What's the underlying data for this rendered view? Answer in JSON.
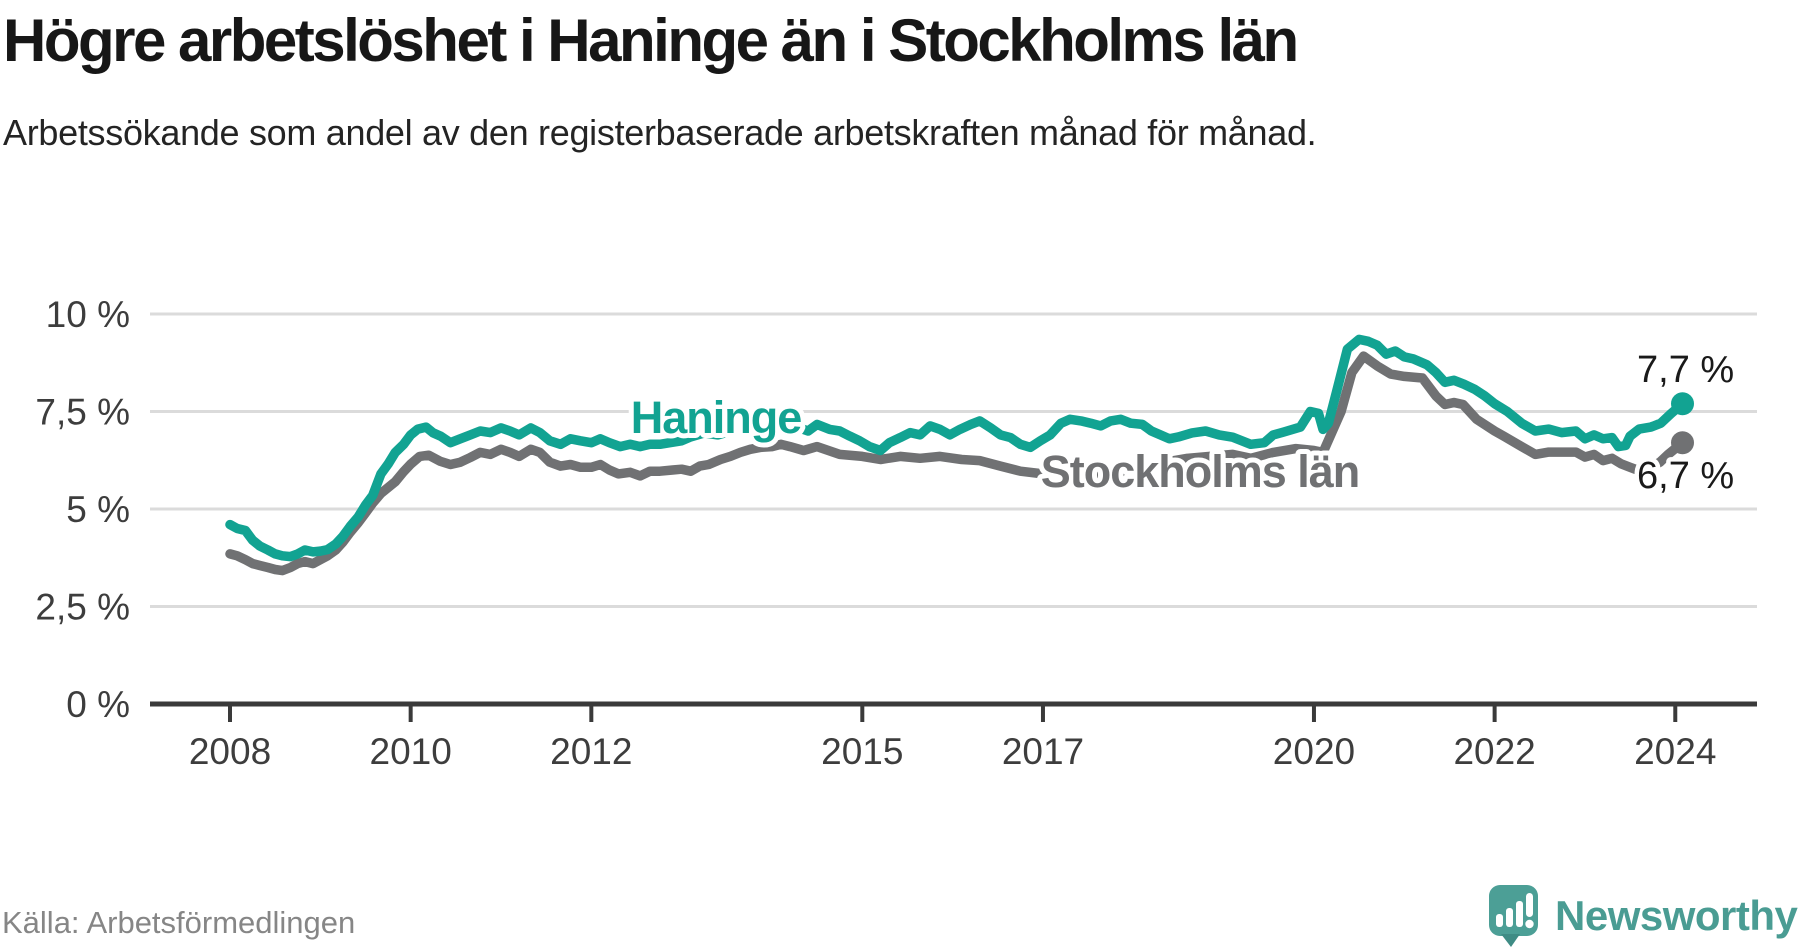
{
  "branding": {
    "name": "Newsworthy",
    "text_color": "#4A9C93",
    "bubble_color": "#4C9F96",
    "bubble_tail_color": "#3F8C85"
  },
  "chart_data": {
    "type": "line",
    "title": "Högre arbetslöshet i Haninge än i Stockholms län",
    "subtitle": "Arbetssökande som andel av den registerbaserade arbetskraften månad för månad.",
    "source": "Källa: Arbetsförmedlingen",
    "xlabel": "",
    "ylabel": "",
    "xlim": [
      2007.15,
      2024.95
    ],
    "ylim": [
      0,
      10.8
    ],
    "grid": "horizontal",
    "legend": "inline-labels-on-lines",
    "axis_color": "#3A3A3A",
    "gridline_color": "#DBDBDB",
    "tick_label_color": "#3D3D3D",
    "end_label_color": "#1A1A1A",
    "y_ticks": [
      {
        "v": 0,
        "label": "0 %"
      },
      {
        "v": 2.5,
        "label": "2,5 %"
      },
      {
        "v": 5,
        "label": "5 %"
      },
      {
        "v": 7.5,
        "label": "7,5 %"
      },
      {
        "v": 10,
        "label": "10 %"
      }
    ],
    "x_ticks": [
      {
        "v": 2008,
        "label": "2008"
      },
      {
        "v": 2010,
        "label": "2010"
      },
      {
        "v": 2012,
        "label": "2012"
      },
      {
        "v": 2015,
        "label": "2015"
      },
      {
        "v": 2017,
        "label": "2017"
      },
      {
        "v": 2020,
        "label": "2020"
      },
      {
        "v": 2022,
        "label": "2022"
      },
      {
        "v": 2024,
        "label": "2024"
      }
    ],
    "series": [
      {
        "name": "Stockholms län",
        "color": "#707173",
        "end_label": "6,7 %",
        "end_value": 6.7,
        "points": [
          [
            2008.0,
            3.85
          ],
          [
            2008.08,
            3.8
          ],
          [
            2008.17,
            3.7
          ],
          [
            2008.25,
            3.6
          ],
          [
            2008.33,
            3.55
          ],
          [
            2008.42,
            3.5
          ],
          [
            2008.5,
            3.45
          ],
          [
            2008.58,
            3.42
          ],
          [
            2008.67,
            3.5
          ],
          [
            2008.75,
            3.6
          ],
          [
            2008.83,
            3.65
          ],
          [
            2008.92,
            3.6
          ],
          [
            2009.0,
            3.7
          ],
          [
            2009.08,
            3.8
          ],
          [
            2009.17,
            3.95
          ],
          [
            2009.25,
            4.15
          ],
          [
            2009.33,
            4.4
          ],
          [
            2009.42,
            4.65
          ],
          [
            2009.5,
            4.9
          ],
          [
            2009.58,
            5.15
          ],
          [
            2009.67,
            5.4
          ],
          [
            2009.75,
            5.55
          ],
          [
            2009.83,
            5.7
          ],
          [
            2009.92,
            5.95
          ],
          [
            2010.0,
            6.15
          ],
          [
            2010.1,
            6.35
          ],
          [
            2010.2,
            6.38
          ],
          [
            2010.33,
            6.22
          ],
          [
            2010.44,
            6.14
          ],
          [
            2010.55,
            6.2
          ],
          [
            2010.66,
            6.32
          ],
          [
            2010.77,
            6.45
          ],
          [
            2010.88,
            6.4
          ],
          [
            2011.0,
            6.53
          ],
          [
            2011.1,
            6.45
          ],
          [
            2011.2,
            6.35
          ],
          [
            2011.33,
            6.53
          ],
          [
            2011.43,
            6.45
          ],
          [
            2011.54,
            6.2
          ],
          [
            2011.66,
            6.1
          ],
          [
            2011.77,
            6.14
          ],
          [
            2011.88,
            6.07
          ],
          [
            2012.0,
            6.07
          ],
          [
            2012.1,
            6.14
          ],
          [
            2012.2,
            6.0
          ],
          [
            2012.3,
            5.9
          ],
          [
            2012.43,
            5.94
          ],
          [
            2012.54,
            5.85
          ],
          [
            2012.65,
            5.97
          ],
          [
            2012.76,
            5.97
          ],
          [
            2012.9,
            6.0
          ],
          [
            2013.0,
            6.02
          ],
          [
            2013.1,
            5.97
          ],
          [
            2013.2,
            6.1
          ],
          [
            2013.3,
            6.14
          ],
          [
            2013.43,
            6.27
          ],
          [
            2013.54,
            6.35
          ],
          [
            2013.65,
            6.45
          ],
          [
            2013.76,
            6.53
          ],
          [
            2013.87,
            6.58
          ],
          [
            2014.0,
            6.6
          ],
          [
            2014.1,
            6.66
          ],
          [
            2014.2,
            6.6
          ],
          [
            2014.35,
            6.5
          ],
          [
            2014.5,
            6.6
          ],
          [
            2014.75,
            6.4
          ],
          [
            2015.0,
            6.35
          ],
          [
            2015.2,
            6.27
          ],
          [
            2015.42,
            6.35
          ],
          [
            2015.64,
            6.3
          ],
          [
            2015.86,
            6.35
          ],
          [
            2016.1,
            6.27
          ],
          [
            2016.3,
            6.24
          ],
          [
            2016.53,
            6.1
          ],
          [
            2016.75,
            5.97
          ],
          [
            2017.0,
            5.9
          ],
          [
            2017.2,
            5.94
          ],
          [
            2017.42,
            5.9
          ],
          [
            2017.64,
            5.85
          ],
          [
            2017.86,
            5.94
          ],
          [
            2018.1,
            6.05
          ],
          [
            2018.35,
            6.2
          ],
          [
            2018.6,
            6.3
          ],
          [
            2018.85,
            6.35
          ],
          [
            2019.1,
            6.4
          ],
          [
            2019.3,
            6.3
          ],
          [
            2019.55,
            6.45
          ],
          [
            2019.8,
            6.55
          ],
          [
            2020.0,
            6.5
          ],
          [
            2020.1,
            6.45
          ],
          [
            2020.3,
            7.5
          ],
          [
            2020.42,
            8.5
          ],
          [
            2020.55,
            8.92
          ],
          [
            2020.7,
            8.67
          ],
          [
            2020.85,
            8.46
          ],
          [
            2021.0,
            8.4
          ],
          [
            2021.2,
            8.36
          ],
          [
            2021.35,
            7.9
          ],
          [
            2021.45,
            7.68
          ],
          [
            2021.55,
            7.73
          ],
          [
            2021.65,
            7.68
          ],
          [
            2021.8,
            7.3
          ],
          [
            2022.0,
            7.0
          ],
          [
            2022.1,
            6.87
          ],
          [
            2022.3,
            6.6
          ],
          [
            2022.45,
            6.4
          ],
          [
            2022.6,
            6.46
          ],
          [
            2022.75,
            6.46
          ],
          [
            2022.9,
            6.46
          ],
          [
            2023.0,
            6.33
          ],
          [
            2023.1,
            6.4
          ],
          [
            2023.2,
            6.24
          ],
          [
            2023.3,
            6.3
          ],
          [
            2023.4,
            6.16
          ],
          [
            2023.5,
            6.07
          ],
          [
            2023.58,
            6.0
          ],
          [
            2023.67,
            6.15
          ],
          [
            2023.75,
            6.1
          ],
          [
            2023.83,
            6.2
          ],
          [
            2023.92,
            6.4
          ],
          [
            2024.0,
            6.55
          ],
          [
            2024.08,
            6.7
          ]
        ]
      },
      {
        "name": "Haninge",
        "color": "#12A392",
        "end_label": "7,7 %",
        "end_value": 7.7,
        "points": [
          [
            2008.0,
            4.6
          ],
          [
            2008.08,
            4.5
          ],
          [
            2008.17,
            4.45
          ],
          [
            2008.25,
            4.2
          ],
          [
            2008.33,
            4.05
          ],
          [
            2008.42,
            3.95
          ],
          [
            2008.5,
            3.85
          ],
          [
            2008.58,
            3.8
          ],
          [
            2008.67,
            3.78
          ],
          [
            2008.75,
            3.85
          ],
          [
            2008.83,
            3.95
          ],
          [
            2008.92,
            3.9
          ],
          [
            2009.0,
            3.92
          ],
          [
            2009.08,
            3.96
          ],
          [
            2009.17,
            4.1
          ],
          [
            2009.25,
            4.3
          ],
          [
            2009.33,
            4.55
          ],
          [
            2009.42,
            4.8
          ],
          [
            2009.5,
            5.1
          ],
          [
            2009.58,
            5.35
          ],
          [
            2009.67,
            5.9
          ],
          [
            2009.75,
            6.15
          ],
          [
            2009.83,
            6.45
          ],
          [
            2009.92,
            6.65
          ],
          [
            2010.0,
            6.9
          ],
          [
            2010.08,
            7.05
          ],
          [
            2010.17,
            7.1
          ],
          [
            2010.25,
            6.95
          ],
          [
            2010.33,
            6.87
          ],
          [
            2010.44,
            6.7
          ],
          [
            2010.55,
            6.8
          ],
          [
            2010.66,
            6.9
          ],
          [
            2010.77,
            7.0
          ],
          [
            2010.88,
            6.96
          ],
          [
            2011.0,
            7.08
          ],
          [
            2011.1,
            7.0
          ],
          [
            2011.2,
            6.9
          ],
          [
            2011.33,
            7.08
          ],
          [
            2011.43,
            6.96
          ],
          [
            2011.54,
            6.75
          ],
          [
            2011.66,
            6.66
          ],
          [
            2011.77,
            6.8
          ],
          [
            2011.88,
            6.75
          ],
          [
            2012.0,
            6.7
          ],
          [
            2012.1,
            6.8
          ],
          [
            2012.2,
            6.7
          ],
          [
            2012.32,
            6.6
          ],
          [
            2012.43,
            6.66
          ],
          [
            2012.54,
            6.6
          ],
          [
            2012.65,
            6.66
          ],
          [
            2012.76,
            6.66
          ],
          [
            2012.87,
            6.7
          ],
          [
            2013.0,
            6.75
          ],
          [
            2013.1,
            6.85
          ],
          [
            2013.25,
            6.95
          ],
          [
            2013.4,
            6.9
          ],
          [
            2013.55,
            7.0
          ],
          [
            2013.7,
            7.05
          ],
          [
            2013.85,
            7.0
          ],
          [
            2014.0,
            7.05
          ],
          [
            2014.15,
            7.1
          ],
          [
            2014.3,
            7.08
          ],
          [
            2014.4,
            7.0
          ],
          [
            2014.5,
            7.17
          ],
          [
            2014.64,
            7.04
          ],
          [
            2014.75,
            7.0
          ],
          [
            2014.86,
            6.87
          ],
          [
            2014.97,
            6.75
          ],
          [
            2015.08,
            6.6
          ],
          [
            2015.2,
            6.5
          ],
          [
            2015.3,
            6.7
          ],
          [
            2015.42,
            6.83
          ],
          [
            2015.53,
            6.96
          ],
          [
            2015.64,
            6.9
          ],
          [
            2015.75,
            7.13
          ],
          [
            2015.86,
            7.04
          ],
          [
            2015.97,
            6.9
          ],
          [
            2016.08,
            7.04
          ],
          [
            2016.2,
            7.17
          ],
          [
            2016.3,
            7.26
          ],
          [
            2016.42,
            7.08
          ],
          [
            2016.53,
            6.9
          ],
          [
            2016.64,
            6.83
          ],
          [
            2016.75,
            6.66
          ],
          [
            2016.86,
            6.58
          ],
          [
            2016.97,
            6.75
          ],
          [
            2017.08,
            6.9
          ],
          [
            2017.2,
            7.2
          ],
          [
            2017.3,
            7.3
          ],
          [
            2017.42,
            7.26
          ],
          [
            2017.53,
            7.2
          ],
          [
            2017.64,
            7.13
          ],
          [
            2017.75,
            7.26
          ],
          [
            2017.86,
            7.3
          ],
          [
            2017.97,
            7.2
          ],
          [
            2018.1,
            7.17
          ],
          [
            2018.2,
            7.0
          ],
          [
            2018.3,
            6.9
          ],
          [
            2018.4,
            6.8
          ],
          [
            2018.5,
            6.85
          ],
          [
            2018.65,
            6.95
          ],
          [
            2018.8,
            7.0
          ],
          [
            2018.95,
            6.9
          ],
          [
            2019.1,
            6.84
          ],
          [
            2019.3,
            6.66
          ],
          [
            2019.45,
            6.7
          ],
          [
            2019.55,
            6.9
          ],
          [
            2019.66,
            6.97
          ],
          [
            2019.85,
            7.1
          ],
          [
            2019.96,
            7.5
          ],
          [
            2020.05,
            7.45
          ],
          [
            2020.1,
            7.04
          ],
          [
            2020.16,
            7.2
          ],
          [
            2020.25,
            8.0
          ],
          [
            2020.37,
            9.1
          ],
          [
            2020.5,
            9.35
          ],
          [
            2020.6,
            9.3
          ],
          [
            2020.7,
            9.2
          ],
          [
            2020.8,
            8.97
          ],
          [
            2020.9,
            9.05
          ],
          [
            2021.0,
            8.9
          ],
          [
            2021.1,
            8.85
          ],
          [
            2021.25,
            8.7
          ],
          [
            2021.35,
            8.5
          ],
          [
            2021.45,
            8.25
          ],
          [
            2021.55,
            8.3
          ],
          [
            2021.66,
            8.2
          ],
          [
            2021.78,
            8.07
          ],
          [
            2021.89,
            7.9
          ],
          [
            2022.0,
            7.7
          ],
          [
            2022.14,
            7.5
          ],
          [
            2022.3,
            7.2
          ],
          [
            2022.45,
            7.0
          ],
          [
            2022.6,
            7.05
          ],
          [
            2022.74,
            6.96
          ],
          [
            2022.9,
            7.0
          ],
          [
            2023.0,
            6.8
          ],
          [
            2023.1,
            6.9
          ],
          [
            2023.2,
            6.8
          ],
          [
            2023.3,
            6.83
          ],
          [
            2023.37,
            6.6
          ],
          [
            2023.45,
            6.63
          ],
          [
            2023.5,
            6.87
          ],
          [
            2023.6,
            7.05
          ],
          [
            2023.73,
            7.1
          ],
          [
            2023.84,
            7.2
          ],
          [
            2023.95,
            7.44
          ],
          [
            2024.08,
            7.7
          ]
        ]
      }
    ]
  }
}
